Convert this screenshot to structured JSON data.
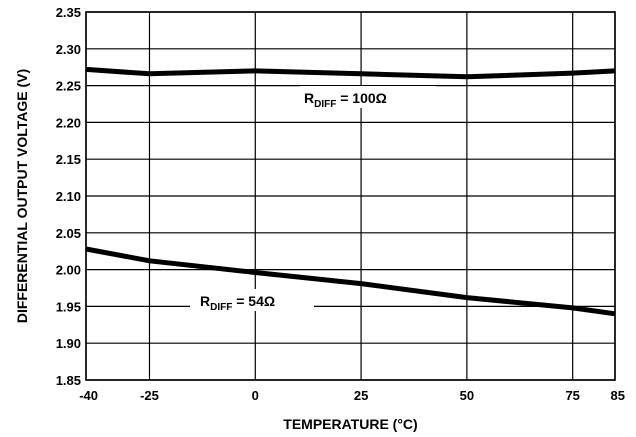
{
  "chart_data": {
    "type": "line",
    "title": "",
    "xlabel": "TEMPERATURE (°C)",
    "ylabel": "DIFFERENTIAL OUTPUT VOLTAGE (V)",
    "xlim": [
      -40,
      85
    ],
    "ylim": [
      1.85,
      2.35
    ],
    "grid": true,
    "x_ticks": [
      -40,
      -25,
      0,
      25,
      50,
      75,
      85
    ],
    "x_tick_labels": [
      "-40",
      "-25",
      "0",
      "25",
      "50",
      "75",
      "85"
    ],
    "y_ticks": [
      1.85,
      1.9,
      1.95,
      2.0,
      2.05,
      2.1,
      2.15,
      2.2,
      2.25,
      2.3,
      2.35
    ],
    "y_tick_labels": [
      "1.85",
      "1.90",
      "1.95",
      "2.00",
      "2.05",
      "2.10",
      "2.15",
      "2.20",
      "2.25",
      "2.30",
      "2.35"
    ],
    "series": [
      {
        "name": "RDIFF = 100Ω",
        "label_main": "R",
        "label_sub": "DIFF",
        "label_rest": " = 100Ω",
        "x": [
          -40,
          -25,
          0,
          25,
          50,
          75,
          85
        ],
        "y": [
          2.272,
          2.266,
          2.27,
          2.266,
          2.262,
          2.267,
          2.27
        ]
      },
      {
        "name": "RDIFF = 54Ω",
        "label_main": "R",
        "label_sub": "DIFF",
        "label_rest": " = 54Ω",
        "x": [
          -40,
          -25,
          0,
          25,
          50,
          75,
          85
        ],
        "y": [
          2.028,
          2.012,
          1.996,
          1.981,
          1.962,
          1.948,
          1.94
        ]
      }
    ]
  }
}
